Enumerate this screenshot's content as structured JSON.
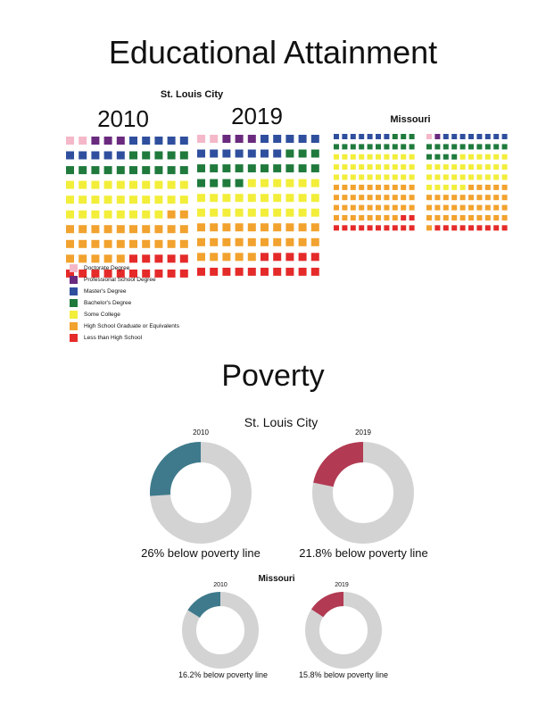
{
  "education": {
    "title": "Educational Attainment",
    "city_label": "St. Louis City",
    "state_label": "Missouri",
    "year_2010": "2010",
    "year_2019": "2019",
    "legend": [
      {
        "label": "Doctorate Degree",
        "color": "#f4b8c8"
      },
      {
        "label": "Professional School Degree",
        "color": "#6a2a7e"
      },
      {
        "label": "Master's Degree",
        "color": "#2f4f9e"
      },
      {
        "label": "Bachelor's Degree",
        "color": "#1f7a3c"
      },
      {
        "label": "Some College",
        "color": "#f2ee3a"
      },
      {
        "label": "High School Graduate or Equivalents",
        "color": "#f2a22e"
      },
      {
        "label": "Less than High School",
        "color": "#e52a2a"
      }
    ]
  },
  "poverty": {
    "title": "Poverty",
    "city_label": "St. Louis City",
    "state_label": "Missouri",
    "ring_color": "#d3d3d3",
    "color_2010": "#3e7a8c",
    "color_2019": "#b23a52"
  },
  "chart_data": [
    {
      "type": "waffle",
      "title": "St. Louis City 2010",
      "grid": [
        10,
        10
      ],
      "categories": [
        "Doctorate Degree",
        "Professional School Degree",
        "Master's Degree",
        "Bachelor's Degree",
        "Some College",
        "High School Graduate or Equivalents",
        "Less than High School"
      ],
      "values": [
        2,
        3,
        10,
        15,
        28,
        27,
        15
      ]
    },
    {
      "type": "waffle",
      "title": "St. Louis City 2019",
      "grid": [
        10,
        10
      ],
      "categories": [
        "Doctorate Degree",
        "Professional School Degree",
        "Master's Degree",
        "Bachelor's Degree",
        "Some College",
        "High School Graduate or Equivalents",
        "Less than High School"
      ],
      "values": [
        2,
        3,
        12,
        17,
        26,
        25,
        15
      ]
    },
    {
      "type": "waffle",
      "title": "Missouri 2010",
      "grid": [
        10,
        10
      ],
      "categories": [
        "Doctorate Degree",
        "Professional School Degree",
        "Master's Degree",
        "Bachelor's Degree",
        "Some College",
        "High School Graduate or Equivalents",
        "Less than High School"
      ],
      "values": [
        0,
        0,
        7,
        13,
        30,
        38,
        12
      ]
    },
    {
      "type": "waffle",
      "title": "Missouri 2019",
      "grid": [
        10,
        10
      ],
      "categories": [
        "Doctorate Degree",
        "Professional School Degree",
        "Master's Degree",
        "Bachelor's Degree",
        "Some College",
        "High School Graduate or Equivalents",
        "Less than High School"
      ],
      "values": [
        1,
        1,
        8,
        14,
        31,
        36,
        9
      ]
    },
    {
      "type": "pie",
      "title": "2010",
      "value": 26,
      "caption": "26% below poverty line"
    },
    {
      "type": "pie",
      "title": "2019",
      "value": 21.8,
      "caption": "21.8% below poverty line"
    },
    {
      "type": "pie",
      "title": "2010",
      "value": 16.2,
      "caption": "16.2% below poverty line"
    },
    {
      "type": "pie",
      "title": "2019",
      "value": 15.8,
      "caption": "15.8% below poverty line"
    }
  ]
}
